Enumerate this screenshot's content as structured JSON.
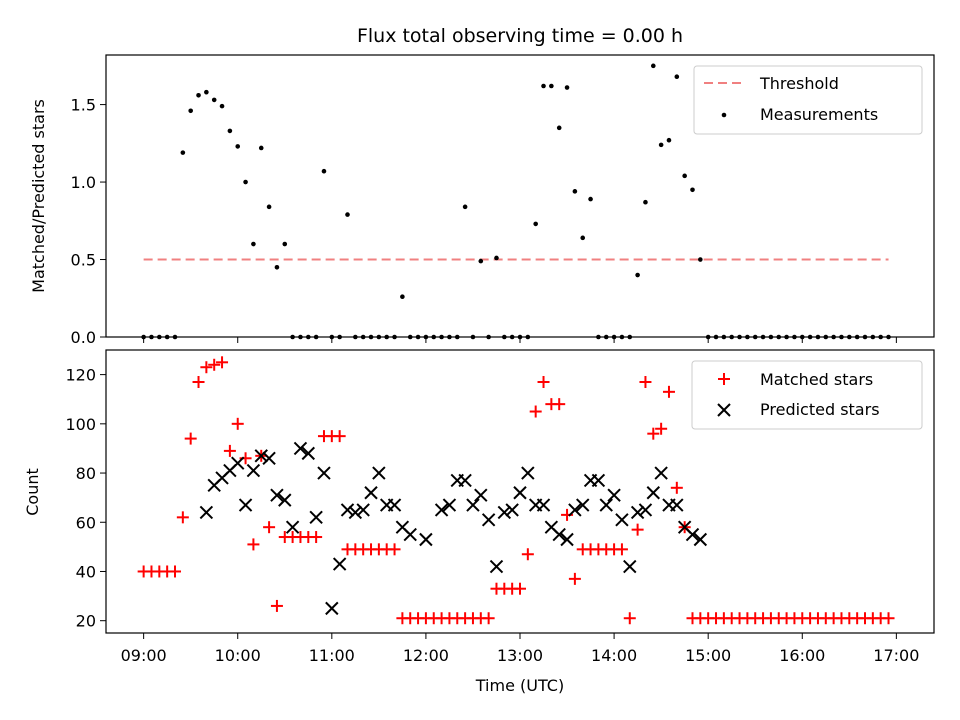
{
  "chart_data": [
    {
      "type": "scatter",
      "title": "Flux total observing time = 0.00 h",
      "xlabel": "",
      "ylabel": "Matched/Predicted stars",
      "ylim": [
        0,
        1.82
      ],
      "yticks": [
        0.0,
        0.5,
        1.0,
        1.5
      ],
      "ytick_labels": [
        "0.0",
        "0.5",
        "1.0",
        "1.5"
      ],
      "x_range": [
        "08:36",
        "17:24"
      ],
      "legend_position": "top-right",
      "colors": {
        "threshold": "#f08080",
        "measurements": "#000000"
      },
      "series": [
        {
          "name": "Threshold",
          "style": "dashed-line",
          "x": [
            "09:00",
            "16:55"
          ],
          "y": [
            0.5,
            0.5
          ]
        },
        {
          "name": "Measurements",
          "style": "dot",
          "x": [
            "09:00",
            "09:05",
            "09:10",
            "09:15",
            "09:20",
            "09:25",
            "09:30",
            "09:35",
            "09:40",
            "09:45",
            "09:50",
            "09:55",
            "10:00",
            "10:05",
            "10:10",
            "10:15",
            "10:20",
            "10:25",
            "10:30",
            "10:35",
            "10:40",
            "10:45",
            "10:50",
            "10:55",
            "11:00",
            "11:05",
            "11:10",
            "11:15",
            "11:20",
            "11:25",
            "11:30",
            "11:35",
            "11:40",
            "11:45",
            "11:50",
            "11:55",
            "12:00",
            "12:05",
            "12:10",
            "12:15",
            "12:20",
            "12:25",
            "12:30",
            "12:35",
            "12:40",
            "12:45",
            "12:50",
            "12:55",
            "13:00",
            "13:05",
            "13:10",
            "13:15",
            "13:20",
            "13:25",
            "13:30",
            "13:35",
            "13:40",
            "13:45",
            "13:50",
            "13:55",
            "14:00",
            "14:05",
            "14:10",
            "14:15",
            "14:20",
            "14:25",
            "14:30",
            "14:35",
            "14:40",
            "14:45",
            "14:50",
            "14:55",
            "15:00",
            "15:05",
            "15:10",
            "15:15",
            "15:20",
            "15:25",
            "15:30",
            "15:35",
            "15:40",
            "15:45",
            "15:50",
            "15:55",
            "16:00",
            "16:05",
            "16:10",
            "16:15",
            "16:20",
            "16:25",
            "16:30",
            "16:35",
            "16:40",
            "16:45",
            "16:50",
            "16:55"
          ],
          "y": [
            0,
            0,
            0,
            0,
            0,
            1.19,
            1.46,
            1.56,
            1.58,
            1.53,
            1.49,
            1.33,
            1.23,
            1.0,
            0.6,
            1.22,
            0.84,
            0.45,
            0.6,
            0,
            0,
            0,
            0,
            1.07,
            0,
            0,
            0.79,
            0,
            0,
            0,
            0,
            0,
            0,
            0.26,
            0,
            0,
            0,
            0,
            0,
            0,
            0,
            0.84,
            0,
            0.49,
            0,
            0.51,
            0,
            0,
            0,
            0,
            0.73,
            1.62,
            1.62,
            1.35,
            1.61,
            0.94,
            0.64,
            0.89,
            0,
            0,
            0,
            0,
            0,
            0.4,
            0.87,
            1.75,
            1.24,
            1.27,
            1.68,
            1.04,
            0.95,
            0.5,
            0,
            0,
            0,
            0,
            0,
            0,
            0,
            0,
            0,
            0,
            0,
            0,
            0,
            0,
            0,
            0,
            0,
            0,
            0,
            0,
            0,
            0,
            0,
            0
          ]
        }
      ]
    },
    {
      "type": "scatter",
      "title": "",
      "xlabel": "Time (UTC)",
      "ylabel": "Count",
      "ylim": [
        15,
        130
      ],
      "yticks": [
        20,
        40,
        60,
        80,
        100,
        120
      ],
      "ytick_labels": [
        "20",
        "40",
        "60",
        "80",
        "100",
        "120"
      ],
      "x_range": [
        "08:36",
        "17:24"
      ],
      "xtick_labels": [
        "09:00",
        "10:00",
        "11:00",
        "12:00",
        "13:00",
        "14:00",
        "15:00",
        "16:00",
        "17:00"
      ],
      "legend_position": "top-right",
      "colors": {
        "matched": "#ff0000",
        "predicted": "#000000"
      },
      "series": [
        {
          "name": "Matched stars",
          "style": "plus",
          "x": [
            "09:00",
            "09:05",
            "09:10",
            "09:15",
            "09:20",
            "09:25",
            "09:30",
            "09:35",
            "09:40",
            "09:45",
            "09:50",
            "09:55",
            "10:00",
            "10:05",
            "10:10",
            "10:15",
            "10:20",
            "10:25",
            "10:30",
            "10:35",
            "10:40",
            "10:45",
            "10:50",
            "10:55",
            "11:00",
            "11:05",
            "11:10",
            "11:15",
            "11:20",
            "11:25",
            "11:30",
            "11:35",
            "11:40",
            "11:45",
            "11:50",
            "11:55",
            "12:00",
            "12:05",
            "12:10",
            "12:15",
            "12:20",
            "12:25",
            "12:30",
            "12:35",
            "12:40",
            "12:45",
            "12:50",
            "12:55",
            "13:00",
            "13:05",
            "13:10",
            "13:15",
            "13:20",
            "13:25",
            "13:30",
            "13:35",
            "13:40",
            "13:45",
            "13:50",
            "13:55",
            "14:00",
            "14:05",
            "14:10",
            "14:15",
            "14:20",
            "14:25",
            "14:30",
            "14:35",
            "14:40",
            "14:45",
            "14:50",
            "14:55",
            "15:00",
            "15:05",
            "15:10",
            "15:15",
            "15:20",
            "15:25",
            "15:30",
            "15:35",
            "15:40",
            "15:45",
            "15:50",
            "15:55",
            "16:00",
            "16:05",
            "16:10",
            "16:15",
            "16:20",
            "16:25",
            "16:30",
            "16:35",
            "16:40",
            "16:45",
            "16:50",
            "16:55"
          ],
          "y": [
            40,
            40,
            40,
            40,
            40,
            62,
            94,
            117,
            123,
            124,
            125,
            89,
            100,
            86,
            51,
            87,
            58,
            26,
            54,
            54,
            54,
            54,
            54,
            95,
            95,
            95,
            49,
            49,
            49,
            49,
            49,
            49,
            49,
            21,
            21,
            21,
            21,
            21,
            21,
            21,
            21,
            21,
            21,
            21,
            21,
            33,
            33,
            33,
            33,
            47,
            105,
            117,
            108,
            108,
            63,
            37,
            49,
            49,
            49,
            49,
            49,
            49,
            21,
            57,
            117,
            96,
            98,
            113,
            74,
            58,
            21,
            21,
            21,
            21,
            21,
            21,
            21,
            21,
            21,
            21,
            21,
            21,
            21,
            21,
            21,
            21,
            21,
            21,
            21,
            21,
            21,
            21,
            21,
            21,
            21,
            21
          ]
        },
        {
          "name": "Predicted stars",
          "style": "x",
          "x": [
            "09:40",
            "09:45",
            "09:50",
            "09:55",
            "10:00",
            "10:05",
            "10:10",
            "10:15",
            "10:20",
            "10:25",
            "10:30",
            "10:35",
            "10:40",
            "10:45",
            "10:50",
            "10:55",
            "11:00",
            "11:05",
            "11:10",
            "11:15",
            "11:20",
            "11:25",
            "11:30",
            "11:35",
            "11:40",
            "11:45",
            "11:50",
            "12:00",
            "12:10",
            "12:15",
            "12:20",
            "12:25",
            "12:30",
            "12:35",
            "12:40",
            "12:45",
            "12:50",
            "12:55",
            "13:00",
            "13:05",
            "13:10",
            "13:15",
            "13:20",
            "13:25",
            "13:30",
            "13:35",
            "13:40",
            "13:45",
            "13:50",
            "13:55",
            "14:00",
            "14:05",
            "14:10",
            "14:15",
            "14:20",
            "14:25",
            "14:30",
            "14:35",
            "14:40",
            "14:45",
            "14:50",
            "14:55"
          ],
          "y": [
            64,
            75,
            78,
            81,
            84,
            67,
            81,
            87,
            86,
            71,
            69,
            58,
            90,
            88,
            62,
            80,
            25,
            43,
            65,
            64,
            65,
            72,
            80,
            67,
            67,
            58,
            55,
            53,
            65,
            67,
            77,
            77,
            67,
            71,
            61,
            42,
            64,
            65,
            72,
            80,
            67,
            67,
            58,
            55,
            53,
            65,
            67,
            77,
            77,
            67,
            71,
            61,
            42,
            64,
            65,
            72,
            80,
            67,
            67,
            58,
            55,
            53
          ],
          "note_points": "visible points listed in order of appearance"
        }
      ]
    }
  ]
}
